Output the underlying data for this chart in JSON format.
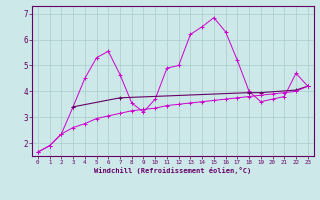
{
  "x": [
    0,
    1,
    2,
    3,
    4,
    5,
    6,
    7,
    8,
    9,
    10,
    11,
    12,
    13,
    14,
    15,
    16,
    17,
    18,
    19,
    20,
    21,
    22,
    23
  ],
  "line_zigzag": [
    1.65,
    1.9,
    2.35,
    3.4,
    4.5,
    5.3,
    5.55,
    4.65,
    3.55,
    3.2,
    3.7,
    4.9,
    5.0,
    6.2,
    6.5,
    6.85,
    6.3,
    5.2,
    4.0,
    3.6,
    3.7,
    3.8,
    4.7,
    4.2
  ],
  "line_upper_x": [
    3,
    7,
    18,
    19,
    22,
    23
  ],
  "line_upper_y": [
    3.4,
    3.75,
    3.95,
    3.95,
    4.05,
    4.2
  ],
  "line_lower": [
    1.65,
    1.9,
    2.35,
    2.6,
    2.75,
    2.95,
    3.05,
    3.15,
    3.25,
    3.3,
    3.35,
    3.45,
    3.5,
    3.55,
    3.6,
    3.65,
    3.7,
    3.75,
    3.8,
    3.85,
    3.9,
    3.95,
    4.0,
    4.2
  ],
  "color_main": "#cc00cc",
  "color_dark": "#660066",
  "background": "#cce8e8",
  "grid_color": "#aacccc",
  "xlabel": "Windchill (Refroidissement éolien,°C)",
  "ylim": [
    1.5,
    7.3
  ],
  "xlim": [
    -0.5,
    23.5
  ],
  "yticks": [
    2,
    3,
    4,
    5,
    6,
    7
  ],
  "xticks": [
    0,
    1,
    2,
    3,
    4,
    5,
    6,
    7,
    8,
    9,
    10,
    11,
    12,
    13,
    14,
    15,
    16,
    17,
    18,
    19,
    20,
    21,
    22,
    23
  ]
}
